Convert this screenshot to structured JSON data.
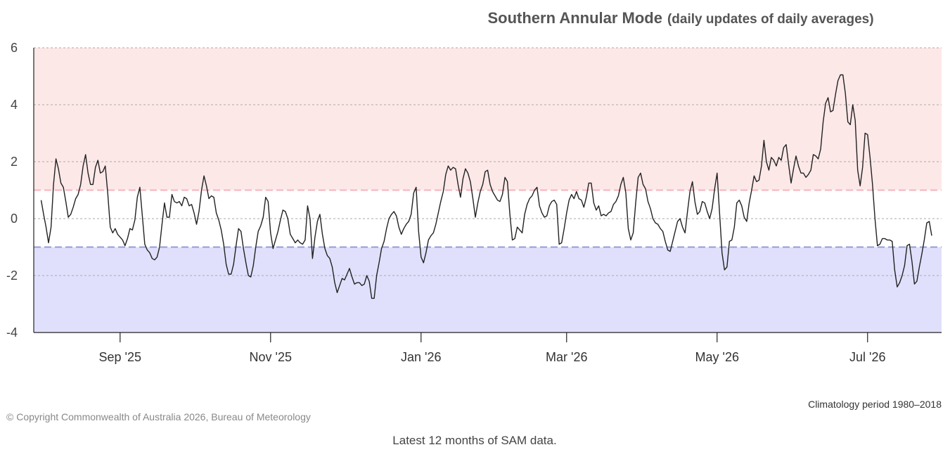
{
  "page": {
    "title": "Southern Annular Mode",
    "subtitle": "(daily updates of daily averages)",
    "climatology_note": "Climatology period 1980–2018",
    "copyright": "© Copyright Commonwealth of Australia 2026, Bureau of Meteorology",
    "caption": "Latest 12 months of SAM data."
  },
  "chart_data": {
    "type": "line",
    "ylim": [
      -4,
      6
    ],
    "yticks": [
      -4,
      -2,
      0,
      2,
      4,
      6
    ],
    "y_grid": true,
    "thresholds": {
      "upper": 1,
      "lower": -1
    },
    "band_colors": {
      "positive": "#fde8e8",
      "negative": "#e0e0fc",
      "upper_line": "#f4b4bc",
      "lower_line": "#9a9ad8",
      "grid": "#aaaaaa",
      "series": "#222222"
    },
    "x_range": [
      "2025-07-28",
      "2026-07-31"
    ],
    "xticks": [
      {
        "date": "2025-09-01",
        "label": "Sep '25"
      },
      {
        "date": "2025-11-01",
        "label": "Nov '25"
      },
      {
        "date": "2026-01-01",
        "label": "Jan '26"
      },
      {
        "date": "2026-03-01",
        "label": "Mar '26"
      },
      {
        "date": "2026-05-01",
        "label": "May '26"
      },
      {
        "date": "2026-07-01",
        "label": "Jul '26"
      }
    ],
    "series": [
      {
        "start_date": "2025-07-31",
        "values": [
          0.65,
          0.15,
          -0.3,
          -0.85,
          -0.3,
          1.2,
          2.1,
          1.75,
          1.25,
          1.1,
          0.6,
          0.05,
          0.15,
          0.4,
          0.7,
          0.85,
          1.2,
          1.85,
          2.25,
          1.6,
          1.2,
          1.2,
          1.8,
          2.05,
          1.6,
          1.65,
          1.85,
          0.9,
          -0.3,
          -0.5,
          -0.35,
          -0.55,
          -0.65,
          -0.75,
          -0.95,
          -0.7,
          -0.35,
          -0.4,
          -0.05,
          0.75,
          1.1,
          0.1,
          -0.9,
          -1.1,
          -1.2,
          -1.4,
          -1.45,
          -1.35,
          -1.0,
          -0.2,
          0.55,
          0.05,
          0.05,
          0.85,
          0.6,
          0.55,
          0.6,
          0.45,
          0.75,
          0.7,
          0.45,
          0.5,
          0.2,
          -0.2,
          0.25,
          1.0,
          1.5,
          1.15,
          0.7,
          0.8,
          0.75,
          0.2,
          -0.05,
          -0.4,
          -0.9,
          -1.6,
          -1.95,
          -1.95,
          -1.6,
          -0.95,
          -0.35,
          -0.45,
          -1.05,
          -1.55,
          -2.0,
          -2.05,
          -1.65,
          -1.0,
          -0.45,
          -0.25,
          0.05,
          0.75,
          0.6,
          -0.5,
          -1.05,
          -0.75,
          -0.45,
          -0.05,
          0.3,
          0.25,
          0.0,
          -0.55,
          -0.7,
          -0.85,
          -0.75,
          -0.85,
          -0.9,
          -0.75,
          0.45,
          0.0,
          -1.4,
          -0.65,
          -0.1,
          0.15,
          -0.55,
          -1.05,
          -1.3,
          -1.4,
          -1.7,
          -2.25,
          -2.6,
          -2.35,
          -2.1,
          -2.15,
          -1.95,
          -1.75,
          -2.05,
          -2.3,
          -2.25,
          -2.25,
          -2.35,
          -2.3,
          -2.0,
          -2.2,
          -2.8,
          -2.8,
          -2.0,
          -1.55,
          -1.05,
          -0.8,
          -0.35,
          0.0,
          0.15,
          0.25,
          0.1,
          -0.3,
          -0.55,
          -0.35,
          -0.2,
          -0.1,
          0.15,
          0.9,
          1.1,
          -0.45,
          -1.35,
          -1.55,
          -1.2,
          -0.75,
          -0.6,
          -0.5,
          -0.2,
          0.2,
          0.6,
          0.95,
          1.55,
          1.85,
          1.7,
          1.8,
          1.75,
          1.2,
          0.75,
          1.4,
          1.75,
          1.6,
          1.3,
          0.7,
          0.05,
          0.55,
          0.95,
          1.2,
          1.65,
          1.7,
          1.2,
          0.95,
          0.8,
          0.65,
          0.6,
          0.85,
          1.45,
          1.3,
          0.15,
          -0.75,
          -0.7,
          -0.3,
          -0.4,
          -0.5,
          0.15,
          0.5,
          0.7,
          0.8,
          1.0,
          1.1,
          0.45,
          0.2,
          0.05,
          0.1,
          0.45,
          0.6,
          0.65,
          0.5,
          -0.9,
          -0.85,
          -0.35,
          0.2,
          0.65,
          0.85,
          0.7,
          0.95,
          0.7,
          0.65,
          0.4,
          0.75,
          1.25,
          1.25,
          0.55,
          0.3,
          0.45,
          0.1,
          0.15,
          0.1,
          0.2,
          0.25,
          0.5,
          0.6,
          0.8,
          1.2,
          1.45,
          0.9,
          -0.35,
          -0.75,
          -0.5,
          0.55,
          1.45,
          1.6,
          1.2,
          1.05,
          0.6,
          0.35,
          0.0,
          -0.15,
          -0.2,
          -0.35,
          -0.45,
          -0.8,
          -1.1,
          -1.15,
          -0.8,
          -0.45,
          -0.1,
          0.0,
          -0.3,
          -0.5,
          0.25,
          0.95,
          1.3,
          0.6,
          0.15,
          0.25,
          0.6,
          0.55,
          0.25,
          0.0,
          0.35,
          1.05,
          1.6,
          0.2,
          -1.2,
          -1.8,
          -1.7,
          -0.8,
          -0.75,
          -0.3,
          0.55,
          0.65,
          0.45,
          0.05,
          -0.1,
          0.55,
          1.0,
          1.5,
          1.3,
          1.35,
          1.85,
          2.75,
          2.0,
          1.7,
          2.15,
          2.05,
          1.85,
          2.15,
          2.05,
          2.5,
          2.6,
          1.9,
          1.25,
          1.75,
          2.2,
          1.85,
          1.6,
          1.6,
          1.45,
          1.55,
          1.7,
          2.25,
          2.2,
          2.1,
          2.45,
          3.4,
          4.05,
          4.25,
          3.75,
          3.8,
          4.35,
          4.85,
          5.05,
          5.05,
          4.4,
          3.4,
          3.3,
          4.0,
          3.45,
          1.7,
          1.15,
          1.8,
          3.0,
          2.95,
          2.15,
          1.2,
          0.0,
          -0.95,
          -0.9,
          -0.7,
          -0.7,
          -0.75,
          -0.75,
          -0.8,
          -1.8,
          -2.4,
          -2.25,
          -2.0,
          -1.65,
          -0.95,
          -0.9,
          -1.5,
          -2.3,
          -2.2,
          -1.7,
          -1.25,
          -0.75,
          -0.15,
          -0.1,
          -0.6
        ]
      }
    ]
  }
}
